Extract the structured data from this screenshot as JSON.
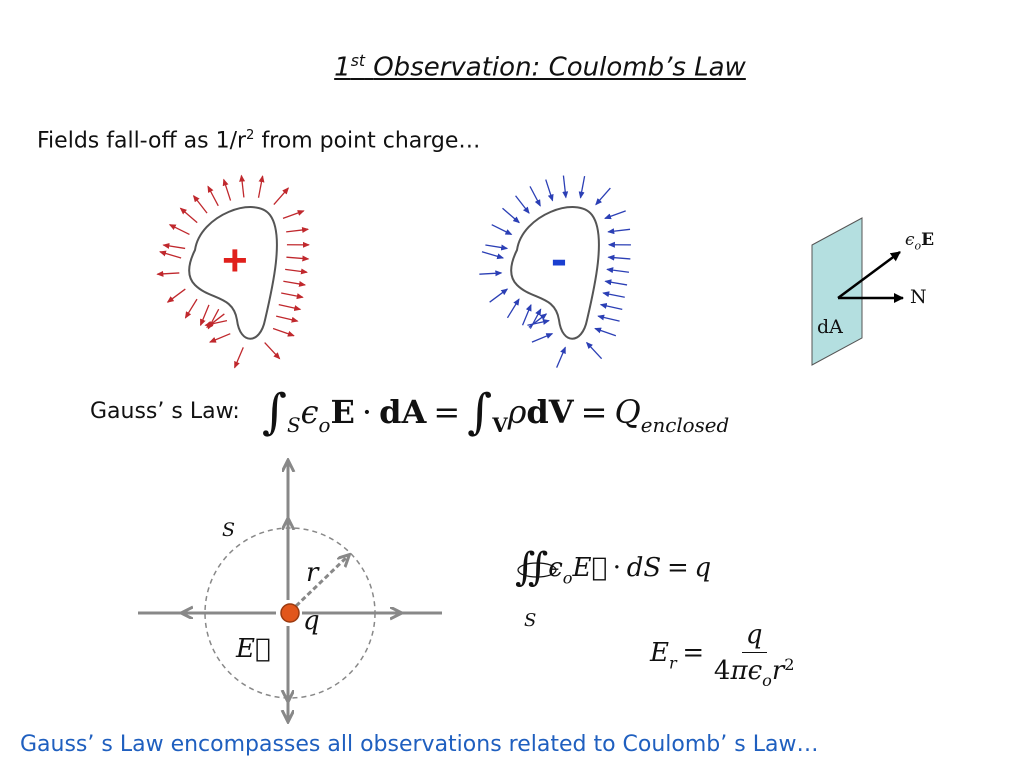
{
  "title": {
    "number": "1",
    "superscript": "st",
    "text": "Observation: Coulomb’s Law"
  },
  "subtitle": {
    "text": "Fields fall-off as 1/r",
    "superscript": "2",
    "suffix": "from point charge…"
  },
  "charges": [
    {
      "sign": "+"
    },
    {
      "sign": "-"
    }
  ],
  "surface_element": {
    "field_symbol": "ϵ",
    "field_subscript": "o",
    "field_vector": "E",
    "normal": "N",
    "area": "dA"
  },
  "gauss_law": {
    "label": "Gauss’ s Law:",
    "equation": [
      {
        "text": "∫",
        "style": "int"
      },
      {
        "text": "S",
        "style": "sub"
      },
      {
        "text": "ϵ",
        "style": "math"
      },
      {
        "text": "o",
        "style": "sub"
      },
      {
        "text": "E",
        "style": "bold"
      },
      {
        "text": "·",
        "style": "op"
      },
      {
        "text": "dA",
        "style": "bold"
      },
      {
        "text": "=",
        "style": "op"
      },
      {
        "text": "∫",
        "style": "int"
      },
      {
        "text": "V",
        "style": "sub-bold"
      },
      {
        "text": "ρ",
        "style": "math"
      },
      {
        "text": "dV",
        "style": "bold"
      },
      {
        "text": "=",
        "style": "op"
      },
      {
        "text": "Q",
        "style": "math"
      },
      {
        "text": "enclosed",
        "style": "sub"
      }
    ]
  },
  "point_charge": {
    "surface": "S",
    "radius": "r",
    "charge": "q",
    "field": "E⃗"
  },
  "surface_integral": {
    "integral_subscript": "S",
    "equation": [
      {
        "text": "∬",
        "style": "int"
      },
      {
        "text": "ϵ",
        "style": "math"
      },
      {
        "text": "o",
        "style": "sub"
      },
      {
        "text": "E⃗",
        "style": "math"
      },
      {
        "text": "·",
        "style": "op"
      },
      {
        "text": "dS",
        "style": "math"
      },
      {
        "text": "=",
        "style": "op"
      },
      {
        "text": "q",
        "style": "math"
      }
    ]
  },
  "radial_field": {
    "lhs": [
      {
        "text": "E",
        "style": "math"
      },
      {
        "text": "r",
        "style": "sub"
      },
      {
        "text": "=",
        "style": "op"
      }
    ],
    "numerator": [
      {
        "text": "q",
        "style": "math"
      }
    ],
    "denominator": [
      {
        "text": "4",
        "style": "roman"
      },
      {
        "text": "π",
        "style": "math"
      },
      {
        "text": "ϵ",
        "style": "math"
      },
      {
        "text": "o",
        "style": "sub"
      },
      {
        "text": "r",
        "style": "math"
      },
      {
        "text": "2",
        "style": "sup"
      }
    ]
  },
  "footer": "Gauss’ s Law encompasses all observations related to Coulomb’ s Law…"
}
